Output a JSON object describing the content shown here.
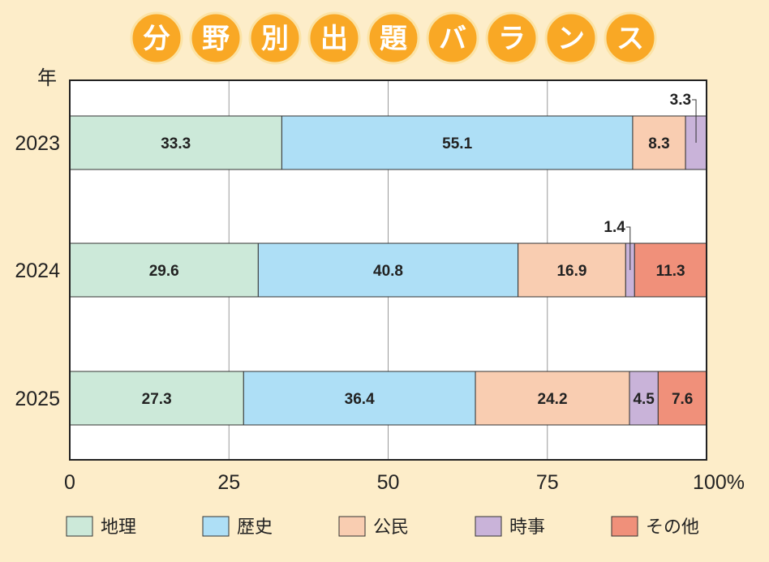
{
  "chart_data": {
    "type": "bar",
    "orientation": "horizontal",
    "stacked": true,
    "title": "分野別出題バランス",
    "ylabel": "年",
    "categories": [
      "2023",
      "2024",
      "2025"
    ],
    "xlim": [
      0,
      100
    ],
    "xticks": [
      "0",
      "25",
      "50",
      "75",
      "100%"
    ],
    "grid": true,
    "legend_position": "bottom",
    "series": [
      {
        "name": "地理",
        "color": "#cce9d9",
        "values": [
          33.3,
          29.6,
          27.3
        ],
        "labels": [
          "33.3",
          "29.6",
          "27.3"
        ]
      },
      {
        "name": "歴史",
        "color": "#aedff6",
        "values": [
          55.1,
          40.8,
          36.4
        ],
        "labels": [
          "55.1",
          "40.8",
          "36.4"
        ]
      },
      {
        "name": "公民",
        "color": "#f9cdb1",
        "values": [
          8.3,
          16.9,
          24.2
        ],
        "labels": [
          "8.3",
          "16.9",
          "24.2"
        ]
      },
      {
        "name": "時事",
        "color": "#c9b3d9",
        "values": [
          3.3,
          1.4,
          4.5
        ],
        "labels": [
          "3.3",
          "1.4",
          "4.5"
        ]
      },
      {
        "name": "その他",
        "color": "#f0907a",
        "values": [
          0,
          11.3,
          7.6
        ],
        "labels": [
          "",
          "11.3",
          "7.6"
        ]
      }
    ]
  }
}
